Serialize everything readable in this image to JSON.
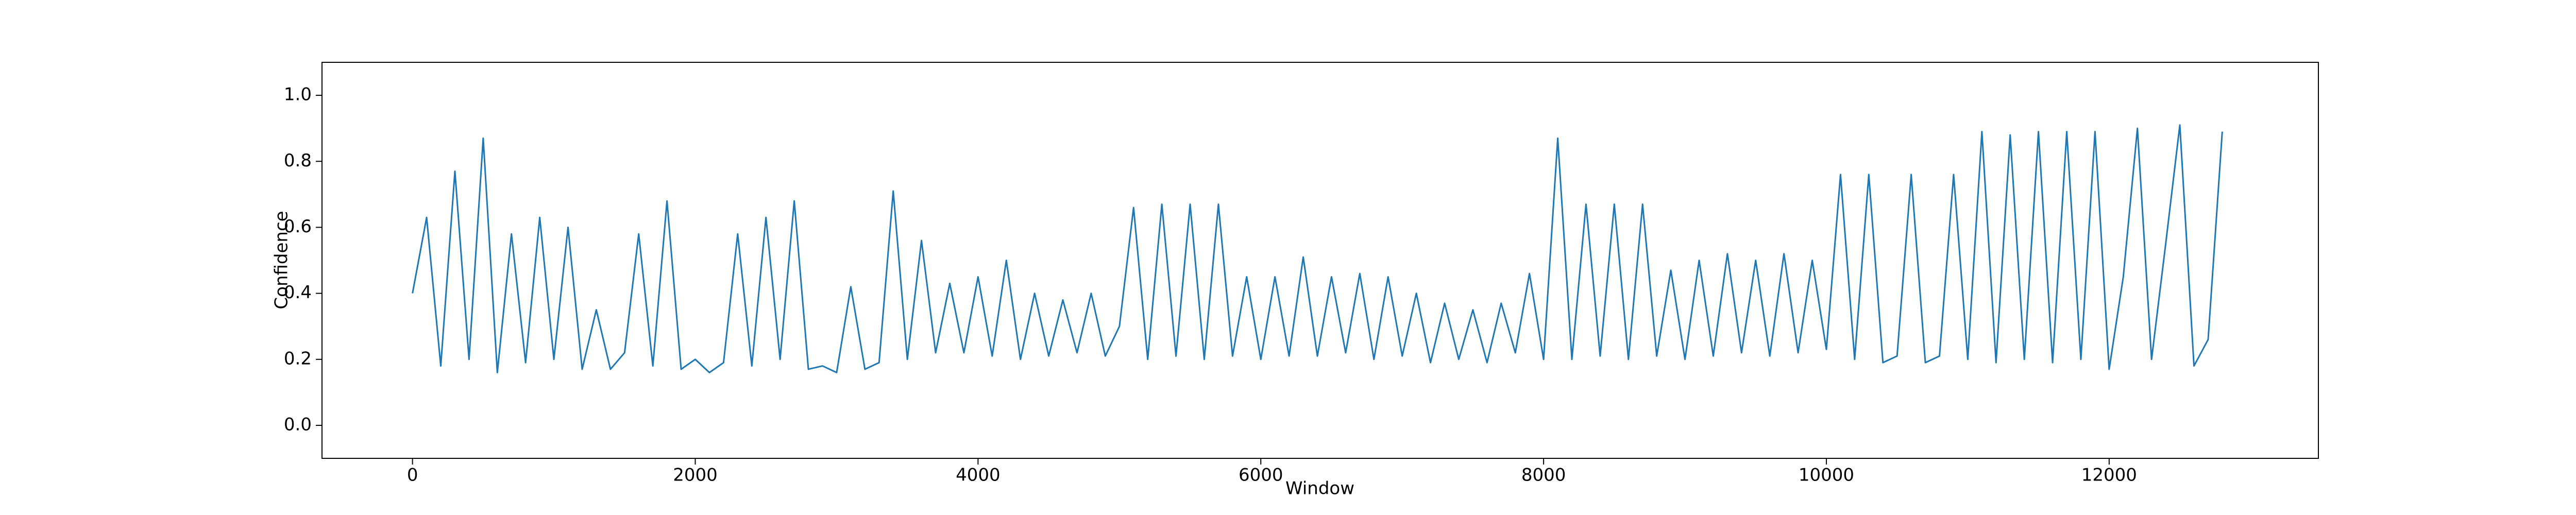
{
  "chart_data": {
    "type": "line",
    "x_label": "Window",
    "y_label": "Confidence",
    "x": [
      0,
      100,
      200,
      300,
      400,
      500,
      600,
      700,
      800,
      900,
      1000,
      1100,
      1200,
      1300,
      1400,
      1500,
      1600,
      1700,
      1800,
      1900,
      2000,
      2100,
      2200,
      2300,
      2400,
      2500,
      2600,
      2700,
      2800,
      2900,
      3000,
      3100,
      3200,
      3300,
      3400,
      3500,
      3600,
      3700,
      3800,
      3900,
      4000,
      4100,
      4200,
      4300,
      4400,
      4500,
      4600,
      4700,
      4800,
      4900,
      5000,
      5100,
      5200,
      5300,
      5400,
      5500,
      5600,
      5700,
      5800,
      5900,
      6000,
      6100,
      6200,
      6300,
      6400,
      6500,
      6600,
      6700,
      6800,
      6900,
      7000,
      7100,
      7200,
      7300,
      7400,
      7500,
      7600,
      7700,
      7800,
      7900,
      8000,
      8100,
      8200,
      8300,
      8400,
      8500,
      8600,
      8700,
      8800,
      8900,
      9000,
      9100,
      9200,
      9300,
      9400,
      9500,
      9600,
      9700,
      9800,
      9900,
      10000,
      10100,
      10200,
      10300,
      10400,
      10500,
      10600,
      10700,
      10800,
      10900,
      11000,
      11100,
      11200,
      11300,
      11400,
      11500,
      11600,
      11700,
      11800,
      11900,
      12000,
      12100,
      12200,
      12300,
      12400,
      12500,
      12600,
      12700,
      12800
    ],
    "series": [
      {
        "color": "#1f77b4",
        "values": [
          0.4,
          0.63,
          0.18,
          0.77,
          0.2,
          0.87,
          0.16,
          0.58,
          0.19,
          0.63,
          0.2,
          0.6,
          0.17,
          0.35,
          0.17,
          0.22,
          0.58,
          0.18,
          0.68,
          0.17,
          0.2,
          0.16,
          0.19,
          0.58,
          0.18,
          0.63,
          0.2,
          0.68,
          0.17,
          0.18,
          0.16,
          0.42,
          0.17,
          0.19,
          0.71,
          0.2,
          0.56,
          0.22,
          0.43,
          0.22,
          0.45,
          0.21,
          0.5,
          0.2,
          0.4,
          0.21,
          0.38,
          0.22,
          0.4,
          0.21,
          0.3,
          0.66,
          0.2,
          0.67,
          0.21,
          0.67,
          0.2,
          0.67,
          0.21,
          0.45,
          0.2,
          0.45,
          0.21,
          0.51,
          0.21,
          0.45,
          0.22,
          0.46,
          0.2,
          0.45,
          0.21,
          0.4,
          0.19,
          0.37,
          0.2,
          0.35,
          0.19,
          0.37,
          0.22,
          0.46,
          0.2,
          0.87,
          0.2,
          0.67,
          0.21,
          0.67,
          0.2,
          0.67,
          0.21,
          0.47,
          0.2,
          0.5,
          0.21,
          0.52,
          0.22,
          0.5,
          0.21,
          0.52,
          0.22,
          0.5,
          0.23,
          0.76,
          0.2,
          0.76,
          0.19,
          0.21,
          0.76,
          0.19,
          0.21,
          0.76,
          0.2,
          0.89,
          0.19,
          0.88,
          0.2,
          0.89,
          0.19,
          0.89,
          0.2,
          0.89,
          0.17,
          0.45,
          0.9,
          0.2,
          0.55,
          0.91,
          0.18,
          0.26,
          0.89
        ]
      }
    ],
    "xlim": [
      -640,
      13480
    ],
    "ylim": [
      -0.1,
      1.1
    ],
    "xticks": [
      0,
      2000,
      4000,
      6000,
      8000,
      10000,
      12000
    ],
    "yticks": [
      {
        "value": 0,
        "label": "0.0"
      },
      0.2,
      0.4,
      0.6,
      0.8,
      {
        "value": 1,
        "label": "1.0"
      }
    ]
  }
}
